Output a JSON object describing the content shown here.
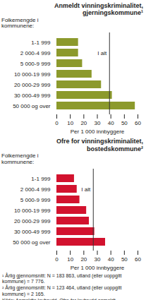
{
  "chart_data": [
    {
      "type": "bar",
      "orientation": "horizontal",
      "title": "Anmeldt vinningskriminalitet, gjerningskommune¹",
      "ylabel": "Folkemengde i kommunene:",
      "xlabel": "Per 1 000 innbyggere",
      "categories": [
        "1-1 999",
        "2 000-4 999",
        "5 000-9 999",
        "10 000-19 999",
        "20 000-29 999",
        "30 000-49 999",
        "50 000 og over"
      ],
      "values": [
        16,
        16,
        19,
        26,
        33,
        41,
        58
      ],
      "color": "#8c9a2c",
      "xlim": [
        0,
        60
      ],
      "xticks": [
        0,
        10,
        20,
        30,
        40,
        50,
        60
      ],
      "grid": false,
      "annotations": [
        {
          "text": "I alt",
          "x": 39
        }
      ]
    },
    {
      "type": "bar",
      "orientation": "horizontal",
      "title": "Ofre for vinningskriminalitet, bostedskommune²",
      "ylabel": "Folkemengde i kommunene:",
      "xlabel": "Per 1 000 innbyggere",
      "categories": [
        "1-1 999",
        "2 000-4 999",
        "5 000-9 999",
        "10 000-19 999",
        "20 000-29 999",
        "30 000-49 999",
        "50 000 og over"
      ],
      "values": [
        13,
        15,
        17,
        22,
        24,
        28,
        36
      ],
      "color": "#d2122e",
      "xlim": [
        0,
        60
      ],
      "xticks": [
        0,
        10,
        20,
        30,
        40,
        50,
        60
      ],
      "grid": false,
      "annotations": [
        {
          "text": "I alt",
          "x": 27
        }
      ]
    }
  ],
  "footnotes": [
    "¹ Årlig gjennomsnitt: N = 183 863, utland (eller uoppgitt kommune) = 7 776.",
    "² Årlig gjennomsnitt: N = 123 464, utland (eller uoppgitt kommune) = 2 165."
  ],
  "source": "Kilde: Anmeldte lovbrudd, Ofre for lovbrudd anmeldt, spesialkjøring, Statistisk sentralbyrå."
}
